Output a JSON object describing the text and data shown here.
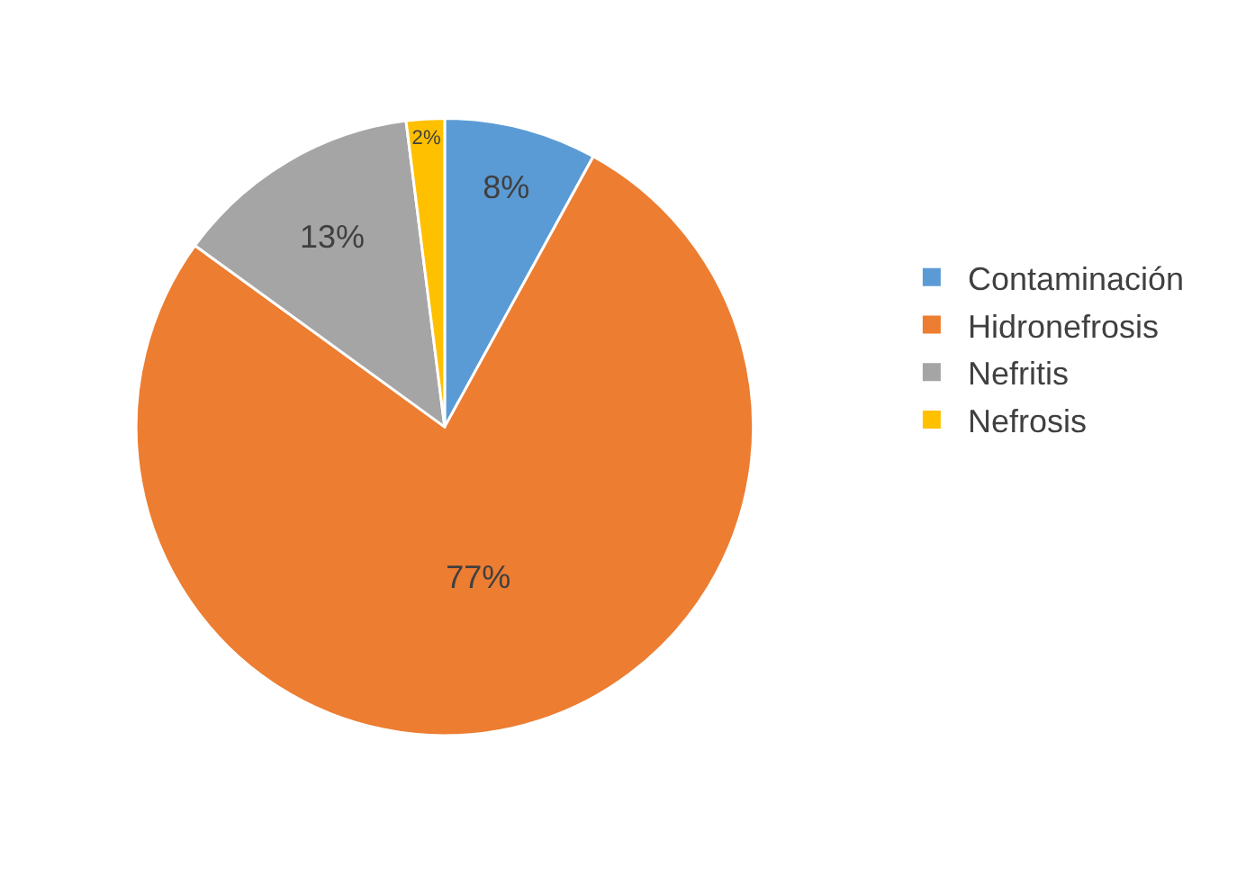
{
  "chart_data": {
    "type": "pie",
    "categories": [
      "Contaminación",
      "Hidronefrosis",
      "Nefritis",
      "Nefrosis"
    ],
    "values": [
      8,
      77,
      13,
      2
    ],
    "value_labels": [
      "8%",
      "77%",
      "13%",
      "2%"
    ],
    "colors": [
      "#5b9bd5",
      "#ed7d31",
      "#a5a5a5",
      "#ffc000"
    ],
    "legend": "right"
  }
}
